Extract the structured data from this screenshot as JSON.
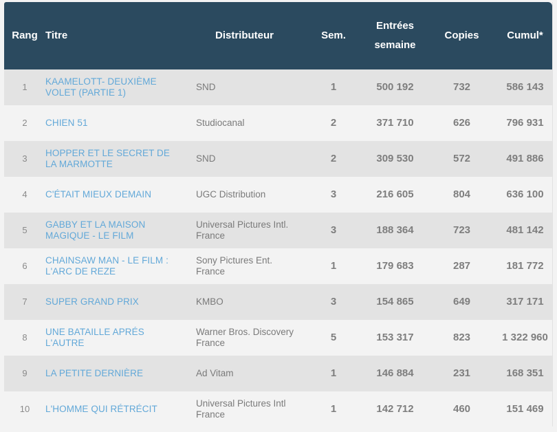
{
  "table": {
    "headers": {
      "rang": "Rang",
      "titre": "Titre",
      "distributeur": "Distributeur",
      "sem": "Sem.",
      "entrees_line1": "Entrées",
      "entrees_line2": "semaine",
      "copies": "Copies",
      "cumul": "Cumul*"
    },
    "rows": [
      {
        "rang": "1",
        "titre": "KAAMELOTT- DEUXIÈME VOLET (PARTIE 1)",
        "distributeur": "SND",
        "sem": "1",
        "entrees": "500 192",
        "copies": "732",
        "cumul": "586 143"
      },
      {
        "rang": "2",
        "titre": "CHIEN 51",
        "distributeur": "Studiocanal",
        "sem": "2",
        "entrees": "371 710",
        "copies": "626",
        "cumul": "796 931"
      },
      {
        "rang": "3",
        "titre": "HOPPER ET LE SECRET DE LA MARMOTTE",
        "distributeur": "SND",
        "sem": "2",
        "entrees": "309 530",
        "copies": "572",
        "cumul": "491 886"
      },
      {
        "rang": "4",
        "titre": "C'ÉTAIT MIEUX DEMAIN",
        "distributeur": "UGC Distribution",
        "sem": "3",
        "entrees": "216 605",
        "copies": "804",
        "cumul": "636 100"
      },
      {
        "rang": "5",
        "titre": "GABBY ET LA MAISON MAGIQUE - LE FILM",
        "distributeur": "Universal Pictures Intl. France",
        "sem": "3",
        "entrees": "188 364",
        "copies": "723",
        "cumul": "481 142"
      },
      {
        "rang": "6",
        "titre": "CHAINSAW MAN - LE FILM : L'ARC DE REZE",
        "distributeur": "Sony Pictures Ent. France",
        "sem": "1",
        "entrees": "179 683",
        "copies": "287",
        "cumul": "181 772"
      },
      {
        "rang": "7",
        "titre": "SUPER GRAND PRIX",
        "distributeur": "KMBO",
        "sem": "3",
        "entrees": "154 865",
        "copies": "649",
        "cumul": "317 171"
      },
      {
        "rang": "8",
        "titre": "UNE BATAILLE APRÉS L'AUTRE",
        "distributeur": "Warner Bros. Discovery France",
        "sem": "5",
        "entrees": "153 317",
        "copies": "823",
        "cumul": "1 322 960"
      },
      {
        "rang": "9",
        "titre": "LA PETITE DERNIÈRE",
        "distributeur": "Ad Vitam",
        "sem": "1",
        "entrees": "146 884",
        "copies": "231",
        "cumul": "168 351"
      },
      {
        "rang": "10",
        "titre": "L'HOMME QUI RÉTRÉCIT",
        "distributeur": "Universal Pictures Intl France",
        "sem": "1",
        "entrees": "142 712",
        "copies": "460",
        "cumul": "151 469"
      }
    ]
  },
  "colors": {
    "header_bg": "#2b4a5f",
    "header_text": "#ffffff",
    "row_odd": "#e3e3e3",
    "row_even": "#f3f3f3",
    "title_link": "#62a8d8",
    "body_text": "#7e7e7e"
  }
}
